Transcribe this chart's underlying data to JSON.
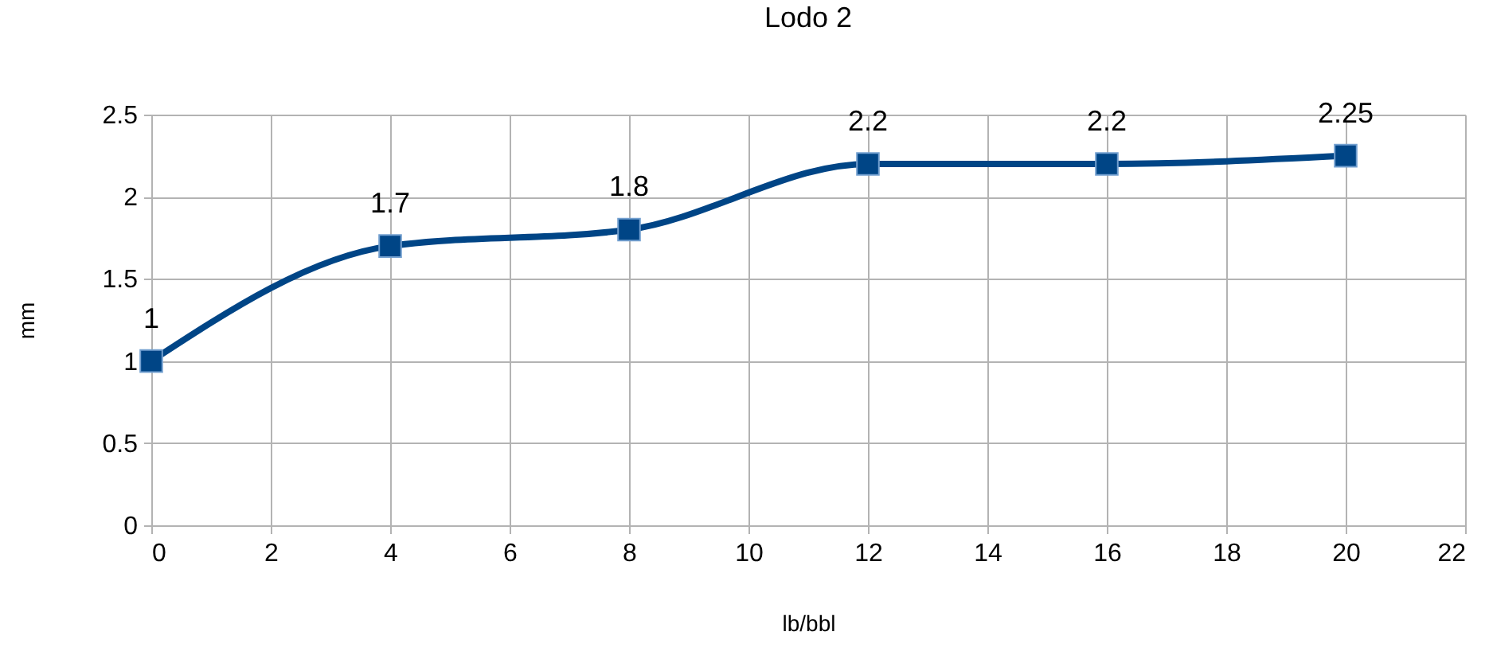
{
  "chart_data": {
    "type": "line",
    "title": "Lodo 2",
    "xlabel": "lb/bbl",
    "ylabel": "mm",
    "x": [
      0,
      4,
      8,
      12,
      16,
      20
    ],
    "series": [
      {
        "color": "#004586",
        "values": [
          1,
          1.7,
          1.8,
          2.2,
          2.2,
          2.25
        ]
      }
    ],
    "xlim": [
      0,
      22
    ],
    "xticks": [
      0,
      2,
      4,
      6,
      8,
      10,
      12,
      14,
      16,
      18,
      20,
      22
    ],
    "ylim": [
      0,
      2.5
    ],
    "yticks": [
      0,
      0.5,
      1,
      1.5,
      2,
      2.5
    ],
    "grid": true,
    "marker": "square",
    "line_style": "solid",
    "data_labels": true
  }
}
